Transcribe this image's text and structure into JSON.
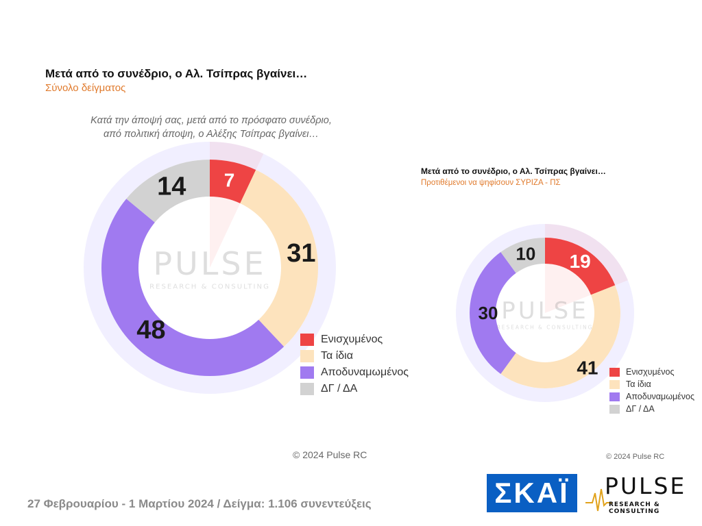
{
  "left": {
    "title": "Μετά από το συνέδριο, ο Αλ. Τσίπρας βγαίνει…",
    "subtitle": "Σύνολο δείγματος",
    "question_line1": "Κατά την άποψή σας, μετά από το πρόσφατο συνέδριο,",
    "question_line2": "από πολιτική άποψη, ο Αλέξης Τσίπρας βγαίνει…",
    "copyright": "© 2024 Pulse RC"
  },
  "right": {
    "title": "Μετά από το συνέδριο, ο Αλ. Τσίπρας βγαίνει…",
    "subtitle": "Προτιθέμενοι να ψηφίσουν ΣΥΡΙΖΑ - ΠΣ",
    "copyright": "© 2024 Pulse RC"
  },
  "legend": [
    {
      "label": "Ενισχυμένος",
      "color": "#ee4444"
    },
    {
      "label": "Τα ίδια",
      "color": "#fde3bd"
    },
    {
      "label": "Αποδυναμωμένος",
      "color": "#a07af0"
    },
    {
      "label": "ΔΓ / ΔΑ",
      "color": "#d2d2d2"
    }
  ],
  "watermark": {
    "brand": "PULSE",
    "tagline": "RESEARCH & CONSULTING"
  },
  "footer": "27 Φεβρουαρίου - 1 Μαρτίου 2024  /  Δείγμα:  1.106 συνεντεύξεις",
  "logos": {
    "skai": "ΣΚΑΪ",
    "pulse": "PULSE",
    "pulse_tag": "RESEARCH & CONSULTING"
  },
  "chart_data": [
    {
      "type": "pie",
      "title": "Μετά από το συνέδριο, ο Αλ. Τσίπρας βγαίνει…",
      "subtitle": "Σύνολο δείγματος",
      "categories": [
        "Ενισχυμένος",
        "Τα ίδια",
        "Αποδυναμωμένος",
        "ΔΓ / ΔΑ"
      ],
      "values": [
        7,
        31,
        48,
        14
      ],
      "colors": [
        "#ee4444",
        "#fde3bd",
        "#a07af0",
        "#d2d2d2"
      ],
      "legend": "bottom-right"
    },
    {
      "type": "pie",
      "title": "Μετά από το συνέδριο, ο Αλ. Τσίπρας βγαίνει…",
      "subtitle": "Προτιθέμενοι να ψηφίσουν ΣΥΡΙΖΑ - ΠΣ",
      "categories": [
        "Ενισχυμένος",
        "Τα ίδια",
        "Αποδυναμωμένος",
        "ΔΓ / ΔΑ"
      ],
      "values": [
        19,
        41,
        30,
        10
      ],
      "colors": [
        "#ee4444",
        "#fde3bd",
        "#a07af0",
        "#d2d2d2"
      ],
      "legend": "bottom-right"
    }
  ]
}
